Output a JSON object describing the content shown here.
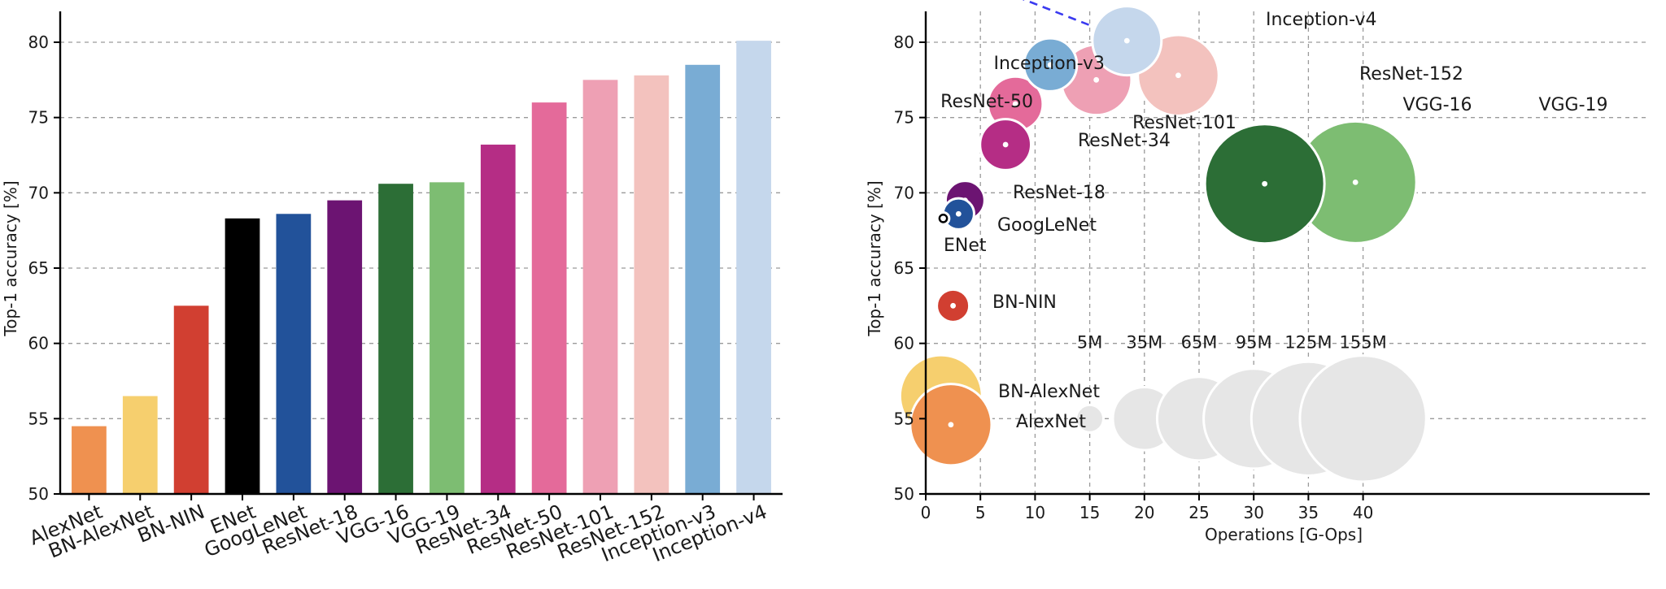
{
  "chart_data": [
    {
      "type": "bar",
      "ylabel": "Top-1 accuracy [%]",
      "xlabel": "",
      "ylim": [
        50,
        80
      ],
      "yticks": [
        "50",
        "55",
        "60",
        "65",
        "70",
        "75",
        "80"
      ],
      "grid": "horizontal-dashed",
      "categories": [
        "AlexNet",
        "BN-AlexNet",
        "BN-NIN",
        "ENet",
        "GoogLeNet",
        "ResNet-18",
        "VGG-16",
        "VGG-19",
        "ResNet-34",
        "ResNet-50",
        "ResNet-101",
        "ResNet-152",
        "Inception-v3",
        "Inception-v4"
      ],
      "values": [
        54.5,
        56.5,
        62.5,
        68.3,
        68.6,
        69.5,
        70.6,
        70.7,
        73.2,
        76.0,
        77.5,
        77.8,
        78.5,
        80.1
      ],
      "colors": [
        "#ef9150",
        "#f6cf6e",
        "#d13f31",
        "#000000",
        "#22529a",
        "#6c1472",
        "#2c6e36",
        "#7dbd72",
        "#b52d85",
        "#e46a9a",
        "#eea0b4",
        "#f3c2be",
        "#79acd4",
        "#c5d7ec"
      ]
    },
    {
      "type": "scatter",
      "xlabel": "Operations [G-Ops]",
      "ylabel": "Top-1 accuracy [%]",
      "xlim": [
        0,
        44
      ],
      "ylim": [
        50,
        82
      ],
      "xticks": [
        "0",
        "5",
        "10",
        "15",
        "20",
        "25",
        "30",
        "35",
        "40"
      ],
      "yticks": [
        "50",
        "55",
        "60",
        "65",
        "70",
        "75",
        "80"
      ],
      "grid": "both-dashed",
      "size_encoding": "parameters",
      "points": [
        {
          "label": "AlexNet",
          "x": 2.3,
          "y": 54.6,
          "params_m": 61,
          "color": "#ef9150"
        },
        {
          "label": "BN-AlexNet",
          "x": 1.4,
          "y": 56.5,
          "params_m": 62,
          "color": "#f6cf6e"
        },
        {
          "label": "BN-NIN",
          "x": 2.5,
          "y": 62.5,
          "params_m": 7.6,
          "color": "#d13f31"
        },
        {
          "label": "ENet",
          "x": 1.6,
          "y": 68.3,
          "params_m": 0.4,
          "color": "#000000"
        },
        {
          "label": "GoogLeNet",
          "x": 3.0,
          "y": 68.6,
          "params_m": 6.8,
          "color": "#22529a"
        },
        {
          "label": "ResNet-18",
          "x": 3.6,
          "y": 69.5,
          "params_m": 11.7,
          "color": "#6c1472"
        },
        {
          "label": "VGG-16",
          "x": 31.0,
          "y": 70.6,
          "params_m": 138,
          "color": "#2c6e36"
        },
        {
          "label": "VGG-19",
          "x": 39.3,
          "y": 70.7,
          "params_m": 144,
          "color": "#7dbd72"
        },
        {
          "label": "ResNet-34",
          "x": 7.3,
          "y": 73.2,
          "params_m": 21.8,
          "color": "#b52d85"
        },
        {
          "label": "ResNet-50",
          "x": 8.2,
          "y": 75.9,
          "params_m": 25.6,
          "color": "#e46a9a"
        },
        {
          "label": "ResNet-101",
          "x": 15.6,
          "y": 77.5,
          "params_m": 44.5,
          "color": "#eea0b4"
        },
        {
          "label": "ResNet-152",
          "x": 23.1,
          "y": 77.8,
          "params_m": 60.2,
          "color": "#f3c2be"
        },
        {
          "label": "Inception-v3",
          "x": 11.4,
          "y": 78.5,
          "params_m": 23.8,
          "color": "#79acd4"
        },
        {
          "label": "Inception-v4",
          "x": 18.4,
          "y": 80.1,
          "params_m": 42.7,
          "color": "#c5d7ec"
        }
      ],
      "size_legend": [
        {
          "label": "5M",
          "x": 15,
          "params_m": 5
        },
        {
          "label": "35M",
          "x": 20,
          "params_m": 35
        },
        {
          "label": "65M",
          "x": 25,
          "params_m": 65
        },
        {
          "label": "95M",
          "x": 30,
          "params_m": 95
        },
        {
          "label": "125M",
          "x": 35,
          "params_m": 125
        },
        {
          "label": "155M",
          "x": 40,
          "params_m": 155
        }
      ],
      "legend_y": 55,
      "legend_color": "#e6e6e6",
      "arrow_color": "#3a3af0"
    }
  ]
}
